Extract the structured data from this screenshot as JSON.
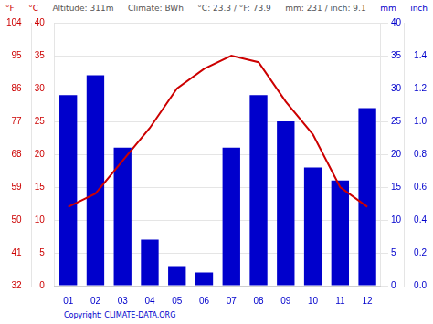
{
  "chart_data": {
    "type": "bar",
    "categories": [
      "01",
      "02",
      "03",
      "04",
      "05",
      "06",
      "07",
      "08",
      "09",
      "10",
      "11",
      "12"
    ],
    "series": [
      {
        "type": "bar",
        "color": "#0000cc",
        "axis": "y2",
        "values": [
          29,
          32,
          21,
          7,
          3,
          2,
          21,
          29,
          25,
          18,
          16,
          27
        ]
      },
      {
        "type": "line",
        "color": "#cc0000",
        "values": [
          12,
          14,
          19,
          24,
          30,
          33,
          35,
          34,
          28,
          23,
          15,
          12
        ]
      }
    ],
    "ylim": [
      0,
      40
    ],
    "yticks": [
      0,
      5,
      10,
      15,
      20,
      25,
      30,
      35,
      40
    ],
    "y_label": "°C",
    "y2lim": [
      0,
      40
    ],
    "y2ticks": [
      0,
      5,
      10,
      15,
      20,
      25,
      30,
      35,
      40
    ],
    "y2_label": "mm",
    "y3lim": [
      32,
      104
    ],
    "y3ticks": [
      32,
      41,
      50,
      59,
      68,
      77,
      86,
      95,
      104
    ],
    "y3_label": "°F",
    "y4lim": [
      0.0,
      1.6
    ],
    "y4ticks": [
      {
        "value": 0.0,
        "label": "0.0"
      },
      0.2,
      0.4,
      0.6,
      0.8,
      {
        "value": 1.0,
        "label": "1.0"
      },
      1.2,
      1.4
    ],
    "y4_label": "inch",
    "grid": true,
    "annotations": [
      "Altitude: 311m",
      "Climate: BWh",
      "°C: 23.3 / °F: 73.9",
      "mm: 231 / inch: 9.1",
      "Copyright: CLIMATE-DATA.ORG"
    ]
  }
}
